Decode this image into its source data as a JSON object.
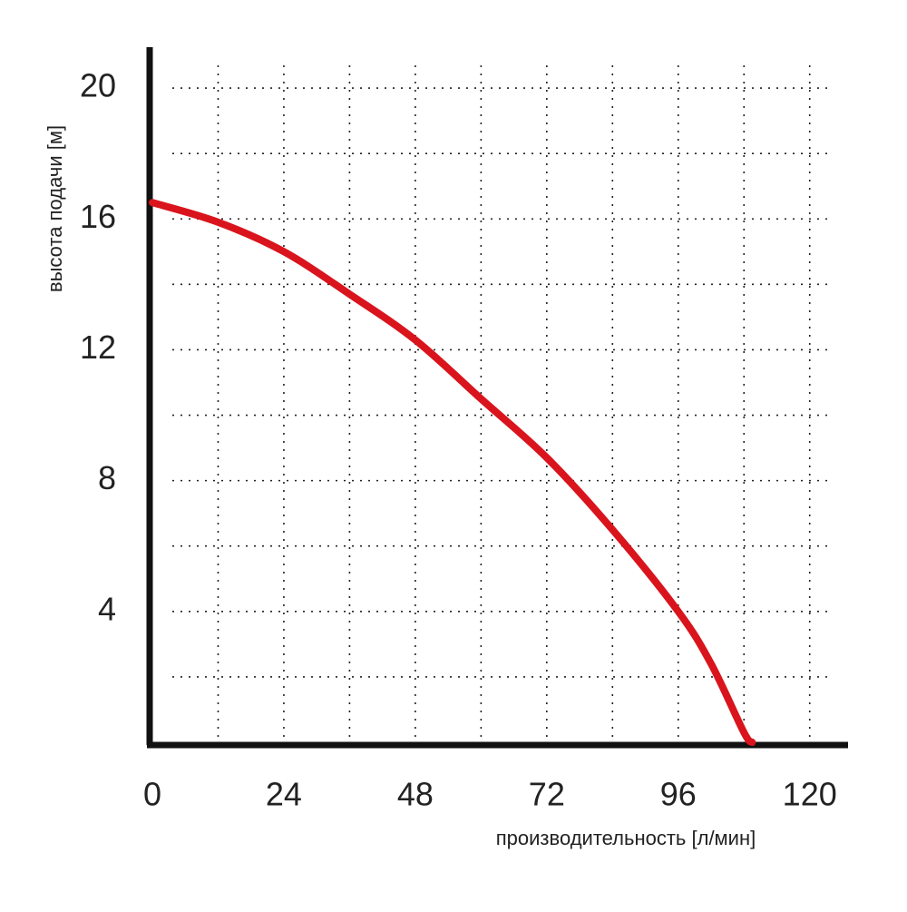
{
  "chart_data": {
    "type": "line",
    "x_label": "производительность [л/мин]",
    "y_label": "высота подачи [м]",
    "xlim": [
      0,
      127
    ],
    "ylim": [
      0,
      21.25
    ],
    "xticks": [
      0,
      24,
      48,
      72,
      96,
      120
    ],
    "yticks": [
      4,
      8,
      12,
      16,
      20
    ],
    "x_gridlines": [
      12,
      24,
      36,
      48,
      60,
      72,
      84,
      96,
      108,
      120
    ],
    "y_gridlines": [
      2,
      4,
      6,
      8,
      10,
      12,
      14,
      16,
      18,
      20
    ],
    "grid": true,
    "series": [
      {
        "color": "#d9141c",
        "x": [
          0,
          12,
          24,
          36,
          48,
          60,
          72,
          84,
          96,
          102,
          108,
          109.5
        ],
        "values": [
          16.5,
          15.9,
          15.0,
          13.7,
          12.3,
          10.5,
          8.7,
          6.5,
          4.0,
          2.4,
          0.3,
          0
        ]
      }
    ]
  }
}
